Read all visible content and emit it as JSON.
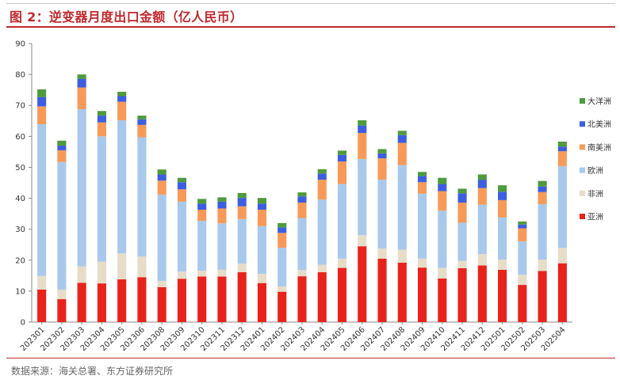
{
  "title": "图 2：逆变器月度出口金额（亿人民币）",
  "source": "数据来源：海关总署、东方证券研究所",
  "chart_data": {
    "type": "bar",
    "stacked": true,
    "categories": [
      "202301",
      "202302",
      "202303",
      "202304",
      "202305",
      "202306",
      "202308",
      "202309",
      "202310",
      "202311",
      "202312",
      "202401",
      "202402",
      "202403",
      "202404",
      "202405",
      "202406",
      "202407",
      "202408",
      "202409",
      "202410",
      "202411",
      "202412",
      "202501",
      "202502",
      "202503",
      "202504"
    ],
    "ylim": [
      0,
      90
    ],
    "yticks": [
      0,
      10,
      20,
      30,
      40,
      50,
      60,
      70,
      80,
      90
    ],
    "grid": false,
    "legend_position": "right",
    "series": [
      {
        "name": "亚洲",
        "color": "#e8231c",
        "values": [
          10.5,
          7.4,
          12.7,
          12.5,
          13.8,
          14.5,
          11.3,
          14.0,
          14.7,
          14.7,
          16.1,
          12.6,
          9.8,
          14.8,
          16.1,
          17.5,
          24.5,
          20.5,
          19.2,
          17.6,
          14.1,
          17.4,
          18.3,
          16.9,
          12.0,
          16.5,
          19.0
        ]
      },
      {
        "name": "非洲",
        "color": "#e6dcc8",
        "values": [
          4.4,
          3.1,
          5.3,
          7.0,
          8.4,
          6.7,
          2.0,
          2.3,
          1.9,
          2.2,
          2.8,
          3.0,
          1.7,
          2.0,
          2.4,
          3.0,
          3.6,
          3.3,
          4.2,
          2.9,
          3.4,
          2.4,
          3.7,
          3.3,
          3.3,
          3.7,
          5.0
        ]
      },
      {
        "name": "欧洲",
        "color": "#a9c9ec",
        "values": [
          49.0,
          41.2,
          50.8,
          40.5,
          43.0,
          38.5,
          27.9,
          22.6,
          16.1,
          15.0,
          14.4,
          15.4,
          12.5,
          16.8,
          21.1,
          24.1,
          24.6,
          22.2,
          27.3,
          21.0,
          18.5,
          12.3,
          15.9,
          13.6,
          10.8,
          17.9,
          26.4
        ]
      },
      {
        "name": "南美洲",
        "color": "#f79a59",
        "values": [
          5.8,
          3.8,
          7.0,
          4.5,
          6.0,
          4.0,
          4.5,
          4.0,
          3.6,
          4.8,
          4.1,
          5.3,
          4.8,
          5.0,
          6.4,
          7.3,
          8.4,
          6.9,
          7.2,
          3.7,
          6.3,
          6.5,
          5.4,
          5.6,
          4.2,
          3.9,
          4.8
        ]
      },
      {
        "name": "北美洲",
        "color": "#3d5ee0",
        "values": [
          3.0,
          1.5,
          2.8,
          2.2,
          1.8,
          1.8,
          2.0,
          2.3,
          2.0,
          2.2,
          2.7,
          2.0,
          1.8,
          2.0,
          2.0,
          2.1,
          2.4,
          1.6,
          2.5,
          2.0,
          2.3,
          3.0,
          2.7,
          2.7,
          1.2,
          1.8,
          1.5
        ]
      },
      {
        "name": "大洋洲",
        "color": "#4e9a3c",
        "values": [
          2.5,
          1.6,
          1.4,
          1.5,
          1.4,
          1.2,
          1.6,
          1.4,
          1.5,
          1.4,
          1.6,
          1.8,
          1.4,
          1.3,
          1.4,
          1.4,
          1.7,
          1.4,
          1.4,
          1.3,
          2.0,
          1.5,
          1.7,
          2.1,
          1.0,
          1.8,
          1.6
        ]
      }
    ]
  }
}
